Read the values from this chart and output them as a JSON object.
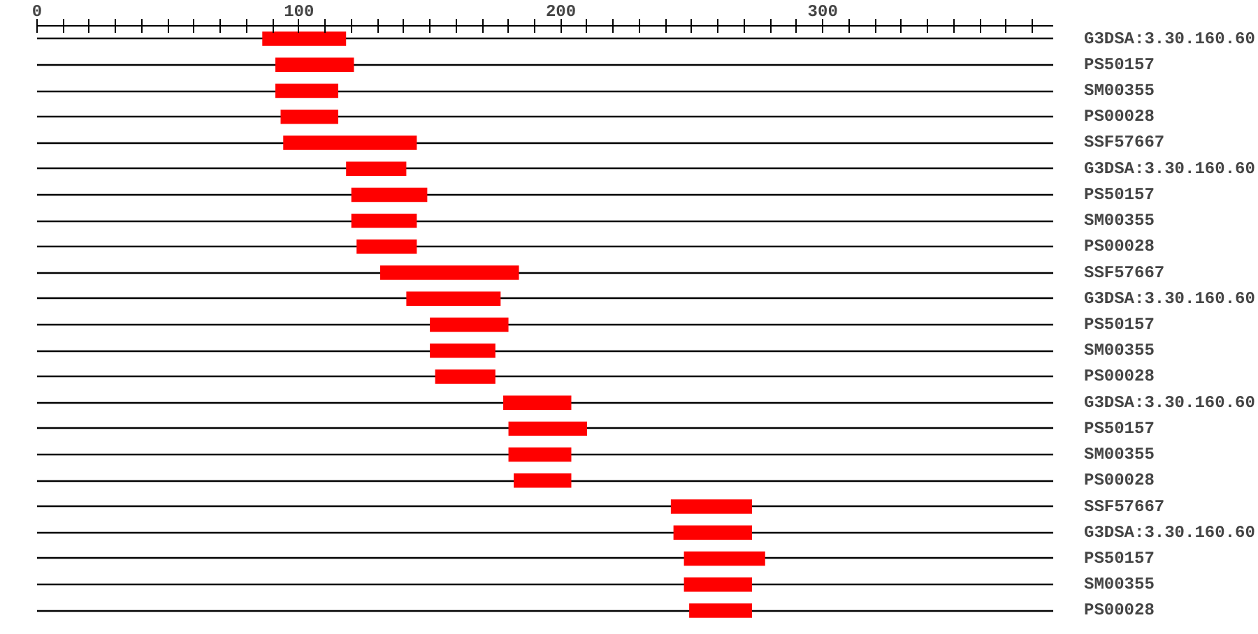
{
  "chart_data": {
    "type": "bar",
    "orientation": "horizontal",
    "grid": "y",
    "categories": [
      "G3DSA:3.30.160.60",
      "PS50157",
      "SM00355",
      "PS00028",
      "SSF57667",
      "G3DSA:3.30.160.60",
      "PS50157",
      "SM00355",
      "PS00028",
      "SSF57667",
      "G3DSA:3.30.160.60",
      "PS50157",
      "SM00355",
      "PS00028",
      "G3DSA:3.30.160.60",
      "PS50157",
      "SM00355",
      "PS00028",
      "SSF57667",
      "G3DSA:3.30.160.60",
      "PS50157",
      "SM00355",
      "PS00028"
    ],
    "base": [
      86,
      91,
      91,
      93,
      94,
      118,
      120,
      120,
      122,
      131,
      141,
      150,
      150,
      152,
      178,
      180,
      180,
      182,
      242,
      243,
      247,
      247,
      249
    ],
    "values": [
      32,
      30,
      24,
      22,
      51,
      23,
      29,
      25,
      23,
      53,
      36,
      30,
      25,
      23,
      26,
      30,
      24,
      22,
      31,
      30,
      31,
      26,
      24
    ],
    "color": "#ff0000",
    "xlim": [
      0,
      388
    ],
    "xticks": [
      0,
      {
        "value": 10,
        "label": null
      },
      {
        "value": 20,
        "label": null
      },
      {
        "value": 30,
        "label": null
      },
      {
        "value": 40,
        "label": null
      },
      {
        "value": 50,
        "label": null
      },
      {
        "value": 60,
        "label": null
      },
      {
        "value": 70,
        "label": null
      },
      {
        "value": 80,
        "label": null
      },
      {
        "value": 90,
        "label": null
      },
      100,
      {
        "value": 110,
        "label": null
      },
      {
        "value": 120,
        "label": null
      },
      {
        "value": 130,
        "label": null
      },
      {
        "value": 140,
        "label": null
      },
      {
        "value": 150,
        "label": null
      },
      {
        "value": 160,
        "label": null
      },
      {
        "value": 170,
        "label": null
      },
      {
        "value": 180,
        "label": null
      },
      {
        "value": 190,
        "label": null
      },
      200,
      {
        "value": 210,
        "label": null
      },
      {
        "value": 220,
        "label": null
      },
      {
        "value": 230,
        "label": null
      },
      {
        "value": 240,
        "label": null
      },
      {
        "value": 250,
        "label": null
      },
      {
        "value": 260,
        "label": null
      },
      {
        "value": 270,
        "label": null
      },
      {
        "value": 280,
        "label": null
      },
      {
        "value": 290,
        "label": null
      },
      300,
      {
        "value": 310,
        "label": null
      },
      {
        "value": 320,
        "label": null
      },
      {
        "value": 330,
        "label": null
      },
      {
        "value": 340,
        "label": null
      },
      {
        "value": 350,
        "label": null
      },
      {
        "value": 360,
        "label": null
      },
      {
        "value": 370,
        "label": null
      },
      {
        "value": 380,
        "label": null
      }
    ]
  }
}
